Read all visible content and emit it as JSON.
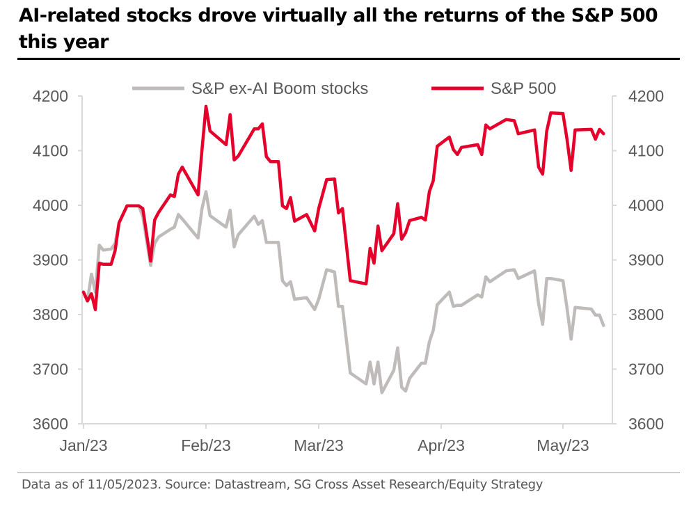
{
  "title": "AI-related stocks drove virtually all the returns of the S&P 500 this year",
  "footnote": "Data as of 11/05/2023. Source: Datastream, SG Cross Asset Research/Equity Strategy",
  "chart_data": {
    "type": "line",
    "title": "AI-related stocks drove virtually all the returns of the S&P 500 this year",
    "xlabel": "",
    "ylabel": "",
    "x_tick_labels": [
      "Jan/23",
      "Feb/23",
      "Mar/23",
      "Apr/23",
      "May/23"
    ],
    "x_ticks": [
      "2023-01-01",
      "2023-02-01",
      "2023-03-01",
      "2023-04-01",
      "2023-05-01"
    ],
    "xlim": [
      "2023-01-01",
      "2023-05-13"
    ],
    "ylim": [
      3600,
      4200
    ],
    "y_ticks": [
      3600,
      3700,
      3800,
      3900,
      4000,
      4100,
      4200
    ],
    "y_tick_labels": [
      "3600",
      "3700",
      "3800",
      "3900",
      "4000",
      "4100",
      "4200"
    ],
    "secondary_y_axis": {
      "ylim": [
        3600,
        4200
      ],
      "ticks": [
        3600,
        3700,
        3800,
        3900,
        4000,
        4100,
        4200
      ]
    },
    "grid": false,
    "legend_position": "top",
    "x": [
      "2023-01-01",
      "2023-01-02",
      "2023-01-03",
      "2023-01-04",
      "2023-01-05",
      "2023-01-06",
      "2023-01-08",
      "2023-01-09",
      "2023-01-10",
      "2023-01-12",
      "2023-01-15",
      "2023-01-16",
      "2023-01-18",
      "2023-01-19",
      "2023-01-20",
      "2023-01-23",
      "2023-01-24",
      "2023-01-25",
      "2023-01-26",
      "2023-01-30",
      "2023-01-31",
      "2023-02-01",
      "2023-02-02",
      "2023-02-06",
      "2023-02-07",
      "2023-02-08",
      "2023-02-09",
      "2023-02-13",
      "2023-02-14",
      "2023-02-15",
      "2023-02-16",
      "2023-02-17",
      "2023-02-19",
      "2023-02-20",
      "2023-02-21",
      "2023-02-22",
      "2023-02-23",
      "2023-02-26",
      "2023-02-28",
      "2023-03-01",
      "2023-03-03",
      "2023-03-05",
      "2023-03-06",
      "2023-03-07",
      "2023-03-09",
      "2023-03-13",
      "2023-03-14",
      "2023-03-15",
      "2023-03-16",
      "2023-03-17",
      "2023-03-20",
      "2023-03-21",
      "2023-03-22",
      "2023-03-23",
      "2023-03-24",
      "2023-03-27",
      "2023-03-28",
      "2023-03-29",
      "2023-03-30",
      "2023-03-31",
      "2023-04-03",
      "2023-04-04",
      "2023-04-05",
      "2023-04-06",
      "2023-04-10",
      "2023-04-11",
      "2023-04-12",
      "2023-04-13",
      "2023-04-17",
      "2023-04-19",
      "2023-04-20",
      "2023-04-24",
      "2023-04-25",
      "2023-04-26",
      "2023-04-27",
      "2023-04-28",
      "2023-05-01",
      "2023-05-02",
      "2023-05-03",
      "2023-05-04",
      "2023-05-08",
      "2023-05-09",
      "2023-05-10",
      "2023-05-11"
    ],
    "series": [
      {
        "name": "S&P ex-AI Boom stocks",
        "color": "#bfbbbb",
        "values": [
          3841,
          3825,
          3874,
          3841,
          3927,
          3918,
          3920,
          3930,
          3968,
          3999,
          3999,
          3980,
          3890,
          3930,
          3942,
          3956,
          3960,
          3983,
          3975,
          3940,
          3994,
          4025,
          3981,
          3960,
          3991,
          3924,
          3946,
          3980,
          3965,
          3972,
          3932,
          3932,
          3932,
          3862,
          3853,
          3860,
          3828,
          3831,
          3809,
          3828,
          3882,
          3878,
          3815,
          3815,
          3693,
          3673,
          3713,
          3673,
          3713,
          3657,
          3698,
          3739,
          3667,
          3660,
          3683,
          3711,
          3711,
          3750,
          3771,
          3818,
          3841,
          3815,
          3817,
          3817,
          3836,
          3832,
          3869,
          3860,
          3880,
          3882,
          3866,
          3880,
          3820,
          3782,
          3866,
          3866,
          3862,
          3812,
          3755,
          3813,
          3810,
          3799,
          3799,
          3780
        ]
      },
      {
        "name": "S&P 500",
        "color": "#e4002b",
        "values": [
          3841,
          3825,
          3838,
          3809,
          3894,
          3892,
          3892,
          3917,
          3968,
          3999,
          3999,
          3994,
          3898,
          3973,
          3987,
          4019,
          4016,
          4057,
          4070,
          4019,
          4102,
          4181,
          4136,
          4111,
          4166,
          4083,
          4090,
          4140,
          4140,
          4149,
          4089,
          4080,
          4080,
          3999,
          3994,
          4014,
          3971,
          3983,
          3953,
          3994,
          4047,
          4048,
          3986,
          3994,
          3862,
          3856,
          3921,
          3894,
          3962,
          3917,
          3948,
          4003,
          3938,
          3950,
          3972,
          3978,
          3973,
          4025,
          4045,
          4108,
          4125,
          4102,
          4093,
          4106,
          4111,
          4093,
          4147,
          4140,
          4157,
          4155,
          4131,
          4138,
          4070,
          4057,
          4136,
          4169,
          4168,
          4121,
          4064,
          4138,
          4139,
          4121,
          4139,
          4131
        ]
      }
    ]
  }
}
